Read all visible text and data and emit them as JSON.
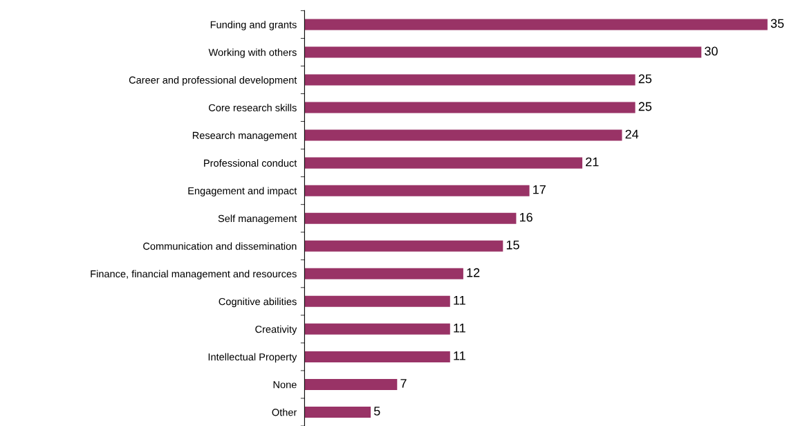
{
  "chart_data": {
    "type": "bar",
    "orientation": "horizontal",
    "categories": [
      "Funding and grants",
      "Working with others",
      "Career and professional development",
      "Core research skills",
      "Research management",
      "Professional conduct",
      "Engagement and impact",
      "Self management",
      "Communication and dissemination",
      "Finance, financial management and resources",
      "Cognitive abilities",
      "Creativity",
      "Intellectual Property",
      "None",
      "Other"
    ],
    "values": [
      35,
      30,
      25,
      25,
      24,
      21,
      17,
      16,
      15,
      12,
      11,
      11,
      11,
      7,
      5
    ],
    "color": "#993366",
    "data_labels": true,
    "grid": false,
    "legend": false
  }
}
